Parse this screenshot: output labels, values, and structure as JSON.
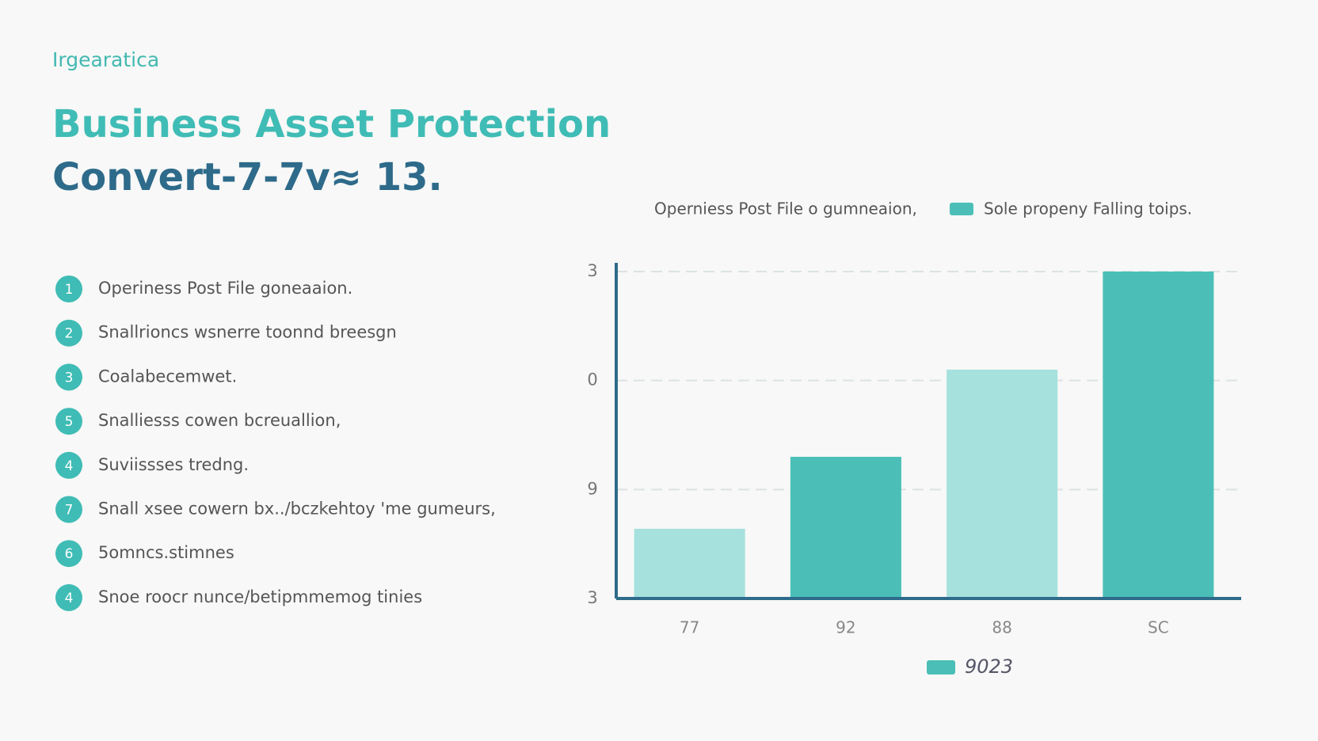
{
  "header": {
    "brand": "Irgearatica",
    "title": "Business Asset Protection",
    "subtitle": "Convert-7-7v≈ 13."
  },
  "list": [
    {
      "number": "1",
      "text": "Operiness Post File goneaaion."
    },
    {
      "number": "2",
      "text": "Snallrioncs wsnerre toonnd breesgn"
    },
    {
      "number": "3",
      "text": "Coalabecemwet."
    },
    {
      "number": "5",
      "text": "Snalliesss cowen bcreuallion,"
    },
    {
      "number": "4",
      "text": "Suviissses tredng."
    },
    {
      "number": "7",
      "text": "Snall xsee cowern bx../bczkehtoy 'me gumeurs,"
    },
    {
      "number": "6",
      "text": "5omncs.stimnes"
    },
    {
      "number": "4",
      "text": "Snoe roocr nunce/betipmmemog tinies"
    }
  ],
  "chart_data": {
    "type": "bar",
    "subtitle": "Operniess Post File o gumneaion,",
    "note_legend": {
      "name": "Sole propeny Falling toips.",
      "color": "#4bbfb7"
    },
    "categories": [
      "77",
      "92",
      "88",
      "SC"
    ],
    "series": [
      {
        "name": "9023",
        "color": "#4bbfb7",
        "values": [
          0.64,
          1.3,
          2.1,
          3.0
        ],
        "colors": [
          "#a6e1de",
          "#4bbfb7",
          "#a6e1de",
          "#4bbfb7"
        ]
      }
    ],
    "ylim": [
      0,
      3
    ],
    "yticks": [
      {
        "value": 0,
        "label": "3"
      },
      {
        "value": 1,
        "label": "9"
      },
      {
        "value": 2,
        "label": "0"
      },
      {
        "value": 3,
        "label": "3"
      }
    ],
    "grid": true
  }
}
